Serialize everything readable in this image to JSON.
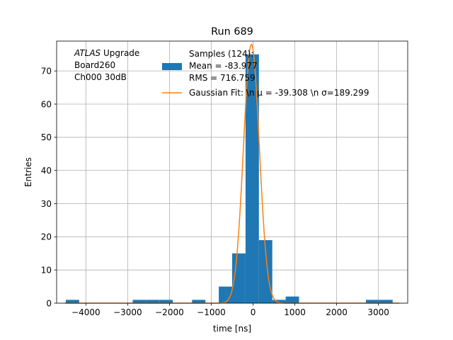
{
  "chart_data": {
    "type": "bar",
    "title": "Run 689",
    "xlabel": "time [ns]",
    "ylabel": "Entries",
    "xlim": [
      -4700,
      3700
    ],
    "ylim": [
      0,
      79
    ],
    "xticks": [
      -4000,
      -3000,
      -2000,
      -1000,
      0,
      1000,
      2000,
      3000
    ],
    "xtick_labels": [
      "−4000",
      "−3000",
      "−2000",
      "−1000",
      "0",
      "1000",
      "2000",
      "3000"
    ],
    "yticks": [
      0,
      10,
      20,
      30,
      40,
      50,
      60,
      70
    ],
    "ytick_labels": [
      "0",
      "10",
      "20",
      "30",
      "40",
      "50",
      "60",
      "70"
    ],
    "grid": true,
    "legend_position": "top-right",
    "annotation_lines": [
      "ATLAS Upgrade",
      " Board260",
      " Ch000 30dB"
    ],
    "annotation_italic": "ATLAS",
    "bar_color": "#1f77b4",
    "fit_color": "#ff7f0e",
    "histogram": {
      "bin_width": 320,
      "bins": [
        {
          "x0": -4480,
          "count": 1
        },
        {
          "x0": -2880,
          "count": 1
        },
        {
          "x0": -2560,
          "count": 1
        },
        {
          "x0": -2240,
          "count": 1
        },
        {
          "x0": -1460,
          "count": 1
        },
        {
          "x0": -820,
          "count": 5
        },
        {
          "x0": -500,
          "count": 15
        },
        {
          "x0": -180,
          "count": 75
        },
        {
          "x0": 140,
          "count": 19
        },
        {
          "x0": 460,
          "count": 1
        },
        {
          "x0": 780,
          "count": 2
        },
        {
          "x0": 2700,
          "count": 1
        },
        {
          "x0": 3020,
          "count": 1
        }
      ]
    },
    "series": [
      {
        "name": "Samples (124):\n Mean = -83.977\n RMS = 716.759",
        "kind": "histogram"
      },
      {
        "name": "Gaussian Fit: \\n μ = -39.308 \\n σ=189.299",
        "kind": "line",
        "mu": -39.308,
        "sigma": 189.299,
        "amplitude": 78
      }
    ],
    "legend": [
      {
        "lines": [
          "Samples (124):",
          " Mean = -83.977",
          " RMS = 716.759"
        ]
      },
      {
        "lines": [
          "Gaussian Fit: \\n μ = -39.308 \\n σ=189.299"
        ]
      }
    ]
  }
}
